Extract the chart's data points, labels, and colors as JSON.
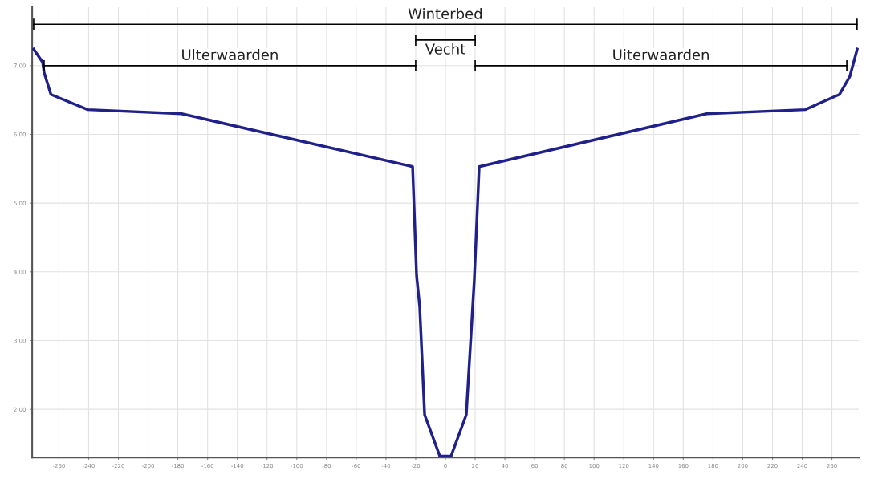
{
  "chart_data": {
    "type": "line",
    "x": [
      -277,
      -271,
      -270,
      -265.4,
      -240.6,
      -177.5,
      -22.1,
      -19.4,
      -17.3,
      -14,
      -3.8,
      3.8,
      14,
      19.4,
      22.7,
      175.8,
      242,
      265,
      272,
      277
    ],
    "series": [
      {
        "color": "#20208a",
        "values": [
          7.24,
          7.05,
          6.9,
          6.58,
          6.36,
          6.3,
          5.53,
          3.94,
          3.49,
          1.92,
          1.32,
          1.32,
          1.92,
          3.88,
          5.53,
          6.3,
          6.36,
          6.58,
          6.84,
          7.24
        ]
      }
    ],
    "xlim": [
      -278,
      278
    ],
    "ylim": [
      1.3,
      7.85
    ],
    "xticks": [
      -260,
      -240,
      -220,
      -200,
      -180,
      -160,
      -140,
      -120,
      -100,
      -80,
      -60,
      -40,
      -20,
      0,
      20,
      40,
      60,
      80,
      100,
      120,
      140,
      160,
      180,
      200,
      220,
      240,
      260
    ],
    "yticks": [
      {
        "value": 2,
        "label": "2.00"
      },
      {
        "value": 3,
        "label": "3.00"
      },
      {
        "value": 4,
        "label": "4.00"
      },
      {
        "value": 5,
        "label": "5.00"
      },
      {
        "value": 6,
        "label": "6.00"
      },
      {
        "value": 7,
        "label": "7.00"
      }
    ],
    "annotations": [
      "Winterbed",
      "Ulterwaarden",
      "Vecht",
      "Uiterwaarden"
    ],
    "grid": true,
    "marker": "none",
    "line_style": "solid"
  }
}
